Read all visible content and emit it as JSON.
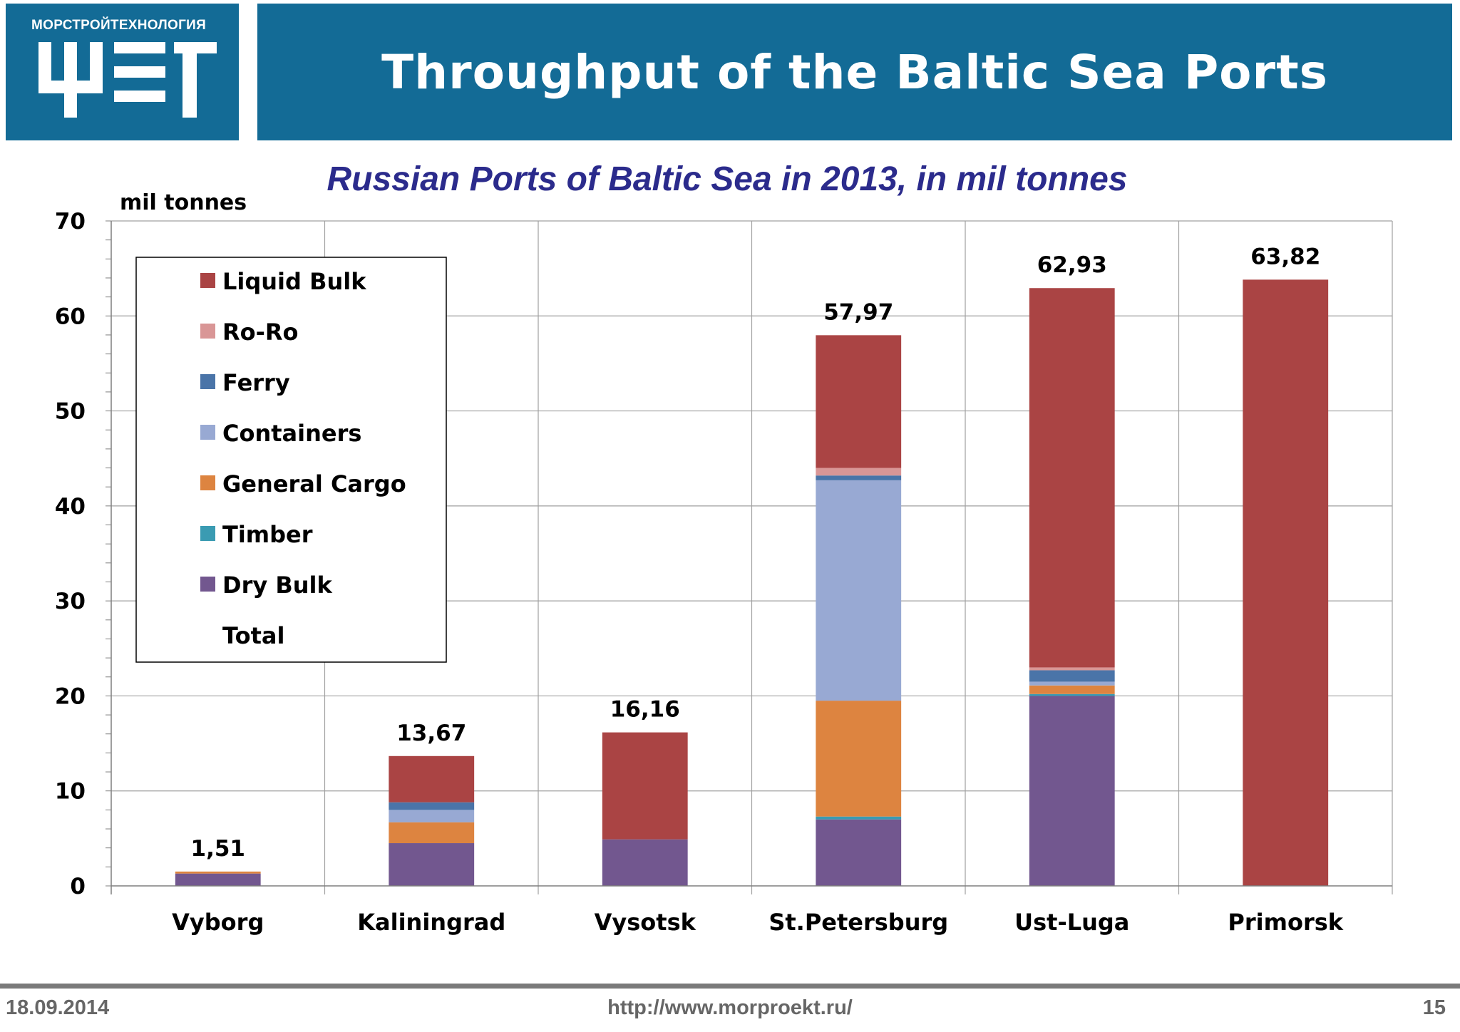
{
  "logo": {
    "company": "МОРСТРОЙТЕХНОЛОГИЯ"
  },
  "header": {
    "title": "Throughput of the Baltic Sea Ports"
  },
  "footer": {
    "date": "18.09.2014",
    "url": "http://www.morproekt.ru/",
    "page": "15"
  },
  "chart_data": {
    "type": "bar",
    "stacked": true,
    "title": "Russian Ports of Baltic Sea in 2013, in mil tonnes",
    "ylabel": "mil tonnes",
    "xlabel": "",
    "ylim": [
      0,
      70
    ],
    "ytick_labels": [
      "0",
      "10",
      "20",
      "30",
      "40",
      "50",
      "60",
      "70"
    ],
    "grid": true,
    "legend_position": "top-left",
    "categories": [
      "Vyborg",
      "Kaliningrad",
      "Vysotsk",
      "St.Petersburg",
      "Ust-Luga",
      "Primorsk"
    ],
    "series": [
      {
        "name": "Dry Bulk",
        "color": "#72578f",
        "values": [
          1.3,
          4.5,
          4.9,
          7.0,
          20.0,
          0
        ]
      },
      {
        "name": "Timber",
        "color": "#3a9bb2",
        "values": [
          0,
          0,
          0,
          0.3,
          0.2,
          0
        ]
      },
      {
        "name": "General Cargo",
        "color": "#dd8440",
        "values": [
          0.21,
          2.2,
          0,
          12.2,
          0.9,
          0
        ]
      },
      {
        "name": "Containers",
        "color": "#98a9d3",
        "values": [
          0,
          1.3,
          0,
          23.2,
          0.4,
          0
        ]
      },
      {
        "name": "Ferry",
        "color": "#4a74a8",
        "values": [
          0,
          0.8,
          0,
          0.5,
          1.2,
          0
        ]
      },
      {
        "name": "Ro-Ro",
        "color": "#d99696",
        "values": [
          0,
          0,
          0,
          0.8,
          0.3,
          0
        ]
      },
      {
        "name": "Liquid Bulk",
        "color": "#aa4444",
        "values": [
          0,
          4.87,
          11.26,
          13.97,
          39.93,
          63.82
        ]
      }
    ],
    "totals": [
      1.51,
      13.67,
      16.16,
      57.97,
      62.93,
      63.82
    ],
    "total_labels": [
      "1,51",
      "13,67",
      "16,16",
      "57,97",
      "62,93",
      "63,82"
    ],
    "legend": [
      "Liquid Bulk",
      "Ro-Ro",
      "Ferry",
      "Containers",
      "General Cargo",
      "Timber",
      "Dry Bulk",
      "Total"
    ]
  }
}
